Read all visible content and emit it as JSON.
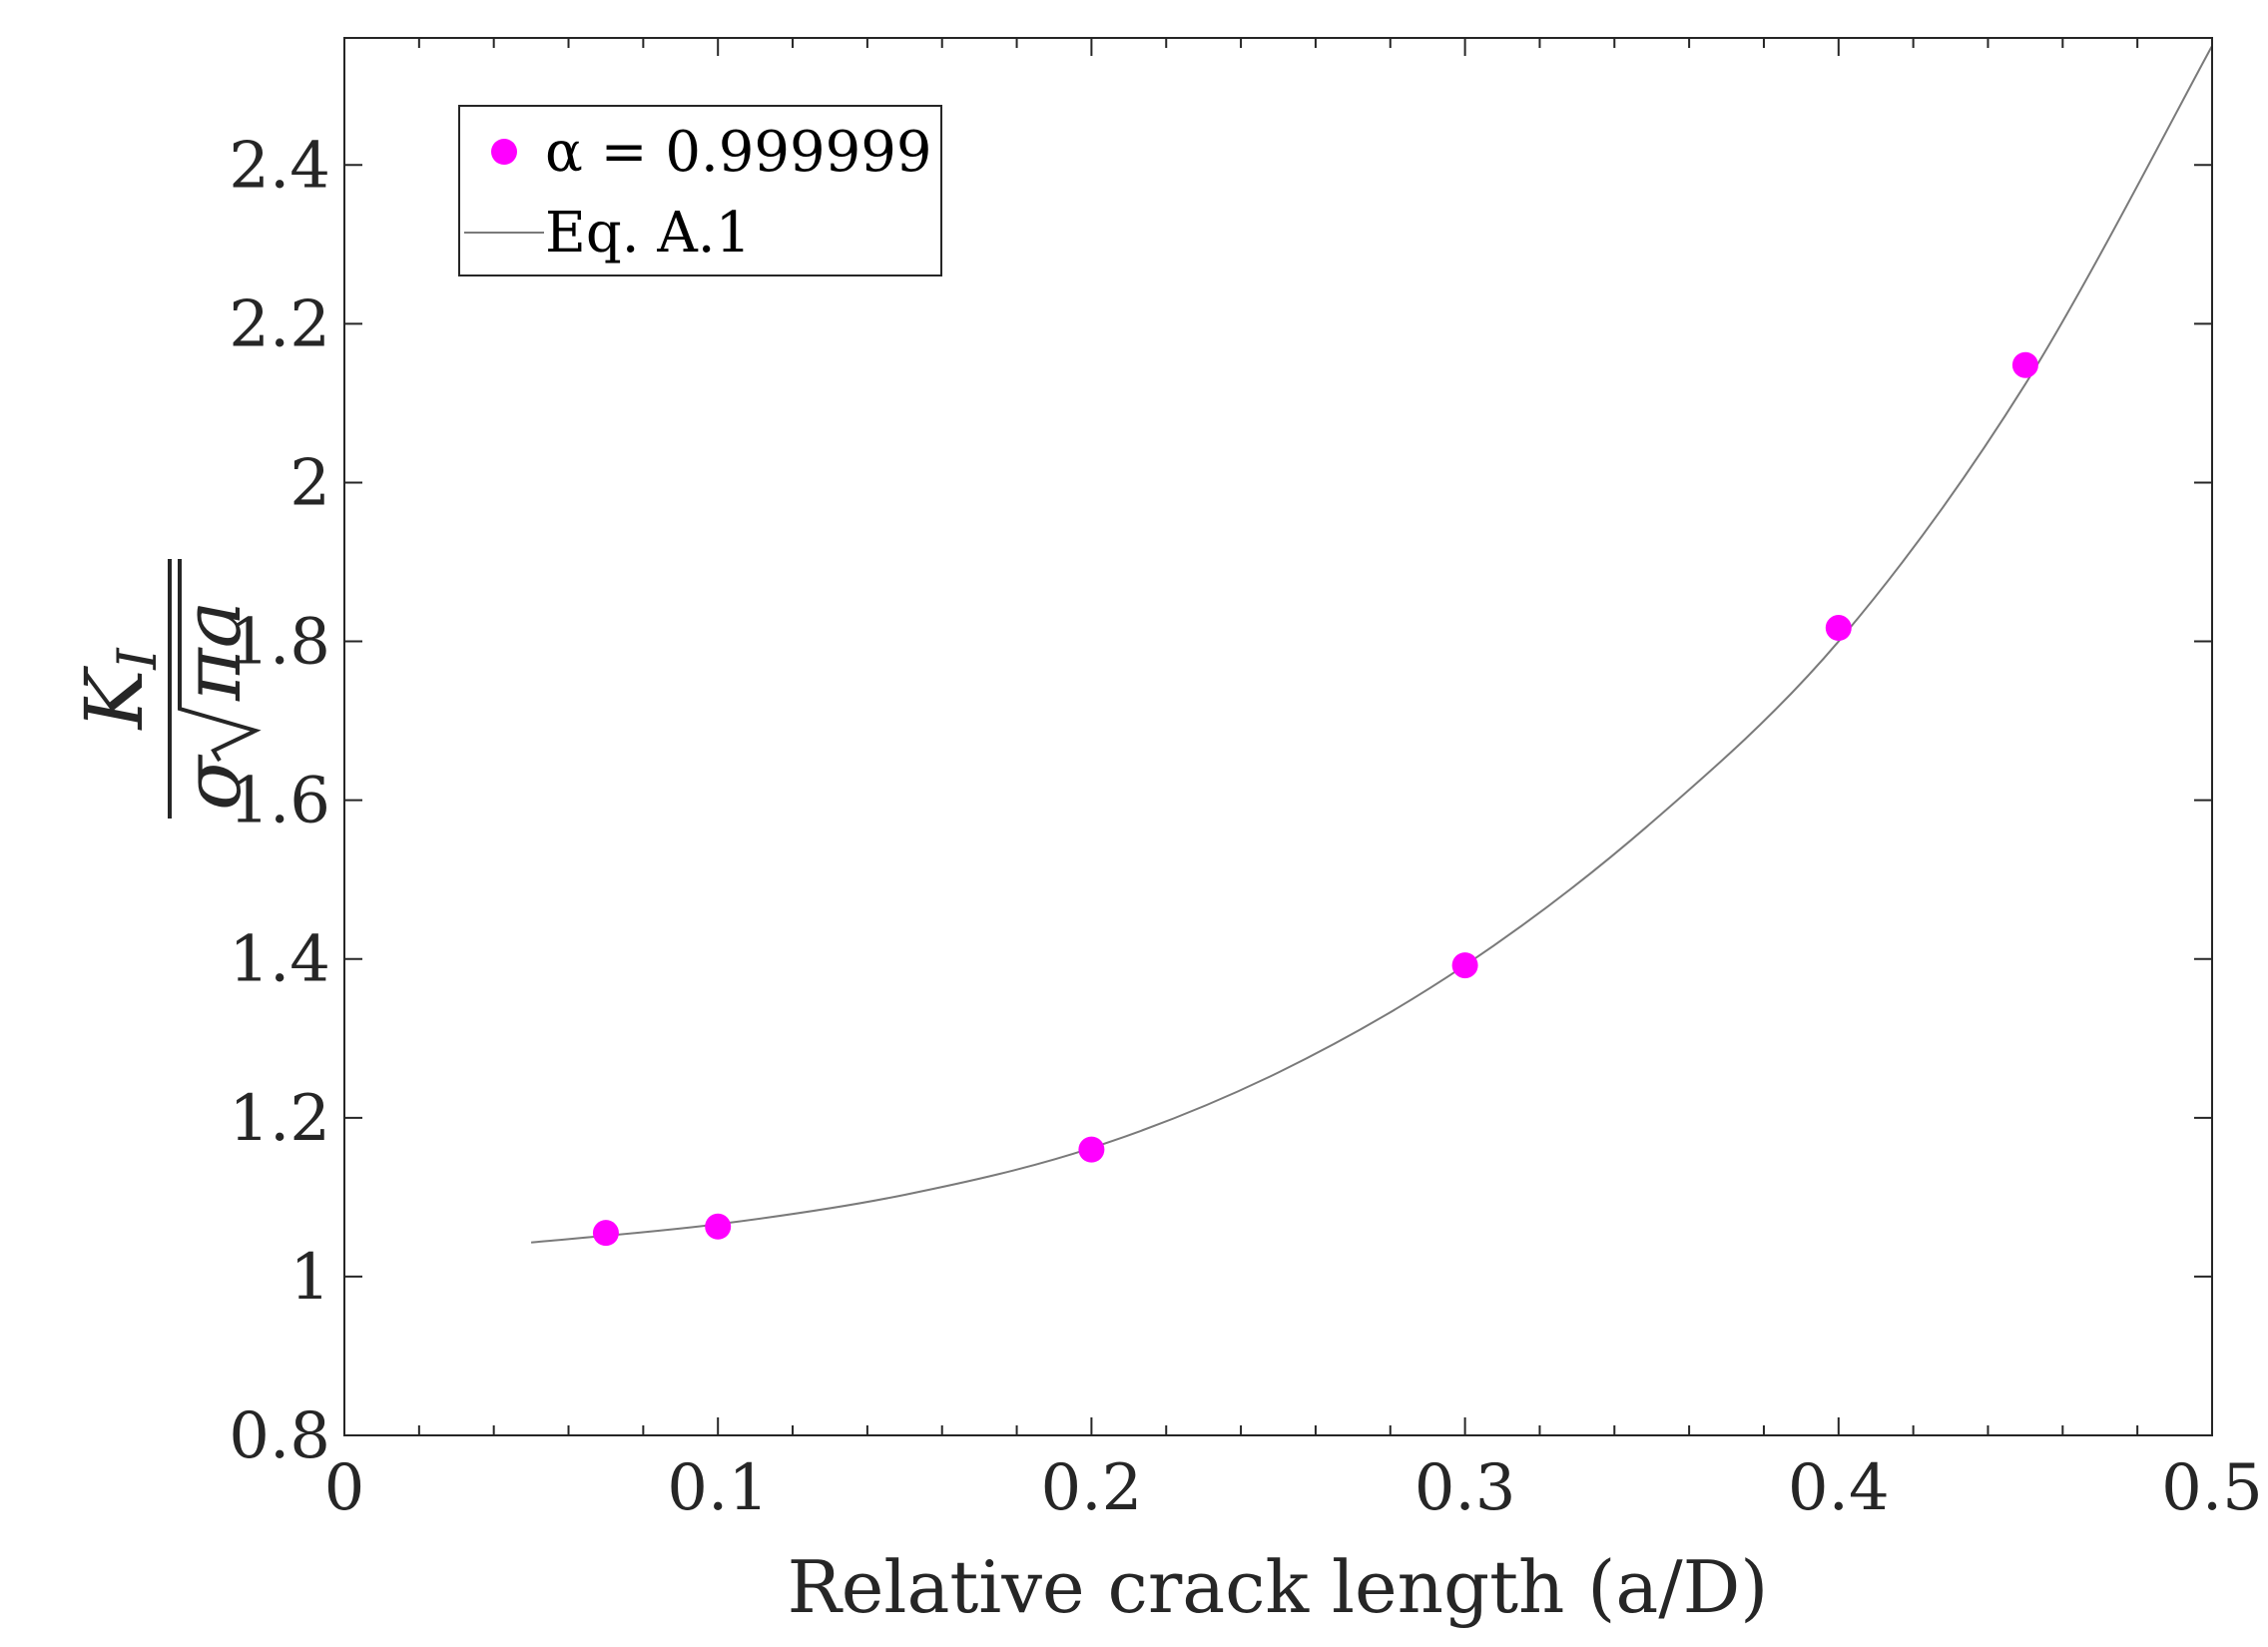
{
  "chart_data": {
    "type": "scatter",
    "title": "",
    "xlabel": "Relative crack length (a/D)",
    "ylabel": {
      "numerator": "K",
      "numerator_subscript": "I",
      "denominator_sigma": "σ",
      "denominator_radicand": "πa"
    },
    "xlim": [
      0,
      0.5
    ],
    "ylim": [
      0.8,
      2.56
    ],
    "xticks": [
      0,
      0.1,
      0.2,
      0.3,
      0.4,
      0.5
    ],
    "xtick_labels": [
      "0",
      "0.1",
      "0.2",
      "0.3",
      "0.4",
      "0.5"
    ],
    "yticks": [
      0.8,
      1.0,
      1.2,
      1.4,
      1.6,
      1.8,
      2.0,
      2.2,
      2.4
    ],
    "ytick_labels": [
      "0.8",
      "1",
      "1.2",
      "1.4",
      "1.6",
      "1.8",
      "2",
      "2.2",
      "2.4"
    ],
    "x_minor_step": 0.02,
    "grid": false,
    "legend_position": "top-left",
    "series": [
      {
        "name": "α = 0.999999",
        "kind": "markers",
        "color": "#ff00ff",
        "x": [
          0.07,
          0.1,
          0.2,
          0.3,
          0.4,
          0.45
        ],
        "y": [
          1.055,
          1.063,
          1.16,
          1.392,
          1.817,
          2.148
        ]
      },
      {
        "name": "Eq. A.1",
        "kind": "line",
        "color": "#7a7a7a",
        "x": [
          0.05,
          0.1,
          0.15,
          0.2,
          0.25,
          0.3,
          0.35,
          0.4,
          0.45,
          0.5
        ],
        "y": [
          1.043,
          1.066,
          1.103,
          1.162,
          1.257,
          1.392,
          1.572,
          1.8,
          2.124,
          2.55
        ]
      }
    ]
  }
}
